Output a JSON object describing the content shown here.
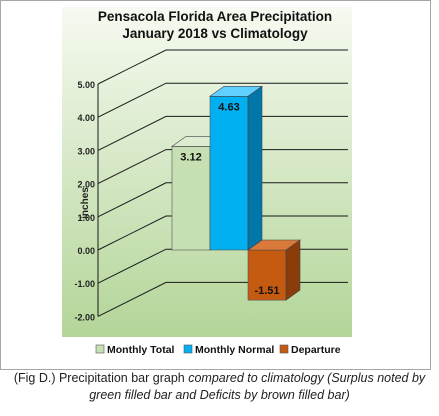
{
  "chart_data": {
    "type": "bar",
    "title_line1": "Pensacola Florida Area Precipitation",
    "title_line2": "January 2018 vs Climatology",
    "ylabel": "inches",
    "xlabel": "",
    "ylim": [
      -2.0,
      5.0
    ],
    "yticks": [
      "5.00",
      "4.00",
      "3.00",
      "2.00",
      "1.00",
      "0.00",
      "-1.00",
      "-2.00"
    ],
    "grid": true,
    "legend_position": "bottom",
    "categories": [
      "Monthly Total",
      "Monthly Normal",
      "Departure"
    ],
    "values": [
      3.12,
      4.63,
      -1.51
    ],
    "data_labels": [
      "3.12",
      "4.63",
      "-1.51"
    ],
    "colors": {
      "monthly_total": "#c6e0b4",
      "monthly_normal": "#00b0f0",
      "departure": "#c55a11",
      "plot_top": "#f4f9ee",
      "plot_bottom": "#b5d69a"
    }
  },
  "legend": [
    {
      "label": "Monthly Total",
      "color": "#c6e0b4"
    },
    {
      "label": "Monthly Normal",
      "color": "#00b0f0"
    },
    {
      "label": "Departure",
      "color": "#c55a11"
    }
  ],
  "caption": {
    "prefix": "(Fig D.) Precipitation bar graph ",
    "italic": "compared to climatology (Surplus noted by green filled bar and Deficits by brown filled bar)"
  }
}
